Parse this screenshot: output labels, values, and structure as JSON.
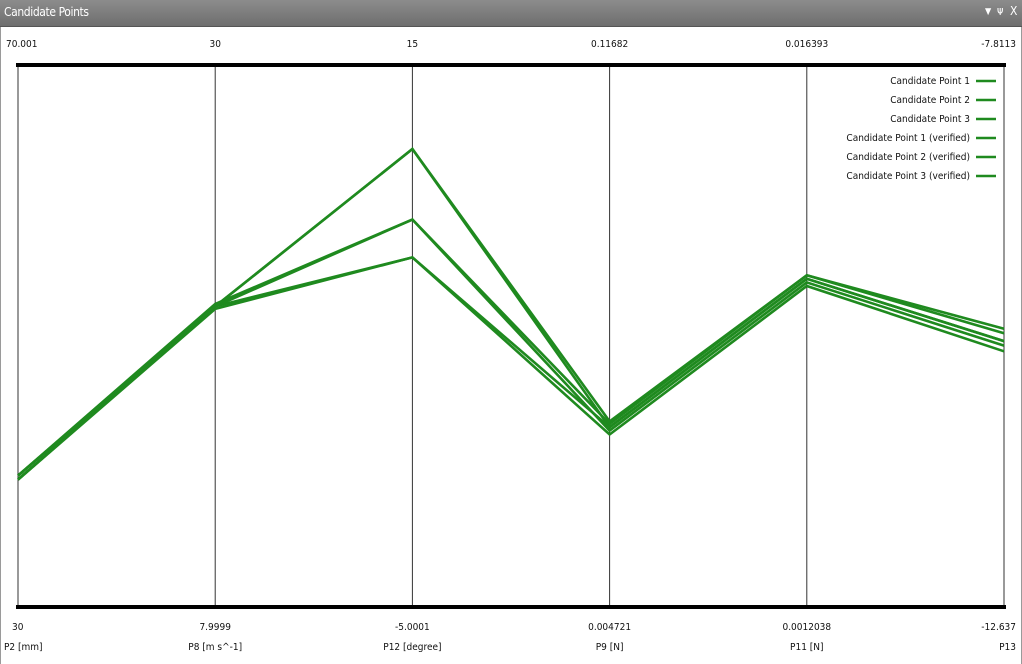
{
  "window": {
    "title": "Candidate Points",
    "pin_glyph": "ᴪ",
    "close_glyph": "X"
  },
  "chart_data": {
    "type": "line",
    "title": "",
    "axes": [
      {
        "name": "P2 [mm]",
        "top_label": "70.001",
        "bottom_label": "30",
        "top": 70.001,
        "bottom": 30
      },
      {
        "name": "P8 [m s^-1]",
        "top_label": "30",
        "bottom_label": "7.9999",
        "top": 30,
        "bottom": 7.9999
      },
      {
        "name": "P12 [degree]",
        "top_label": "15",
        "bottom_label": "-5.0001",
        "top": 15,
        "bottom": -5.0001
      },
      {
        "name": "P9 [N]",
        "top_label": "0.11682",
        "bottom_label": "0.004721",
        "top": 0.11682,
        "bottom": 0.004721
      },
      {
        "name": "P11 [N]",
        "top_label": "0.016393",
        "bottom_label": "0.0012038",
        "top": 0.016393,
        "bottom": 0.0012038
      },
      {
        "name": "P13",
        "top_label": "-7.8113",
        "bottom_label": "-12.637",
        "top": -7.8113,
        "bottom": -12.637
      }
    ],
    "series": [
      {
        "name": "Candidate Point 1",
        "values": [
          39.4,
          20.2,
          11.9,
          0.0419,
          0.0104,
          -10.27
        ]
      },
      {
        "name": "Candidate Point 2",
        "values": [
          39.7,
          20.3,
          9.3,
          0.0426,
          0.0105,
          -10.2
        ]
      },
      {
        "name": "Candidate Point 3",
        "values": [
          39.4,
          20.2,
          7.9,
          0.0419,
          0.0104,
          -10.27
        ]
      },
      {
        "name": "Candidate Point 1 (verified)",
        "values": [
          39.4,
          20.1,
          7.9,
          0.0404,
          0.0102,
          -10.36
        ]
      },
      {
        "name": "Candidate Point 2 (verified)",
        "values": [
          39.7,
          20.2,
          9.3,
          0.0412,
          0.0103,
          -10.31
        ]
      },
      {
        "name": "Candidate Point 3 (verified)",
        "values": [
          39.7,
          20.2,
          11.9,
          0.0431,
          0.0105,
          -10.16
        ]
      }
    ],
    "legend_position": "top-right",
    "colors": {
      "line": "#1f8a1f",
      "axis": "#000000",
      "grid": "#333333",
      "titlebar": "#7a7a7a"
    },
    "grid": true
  }
}
